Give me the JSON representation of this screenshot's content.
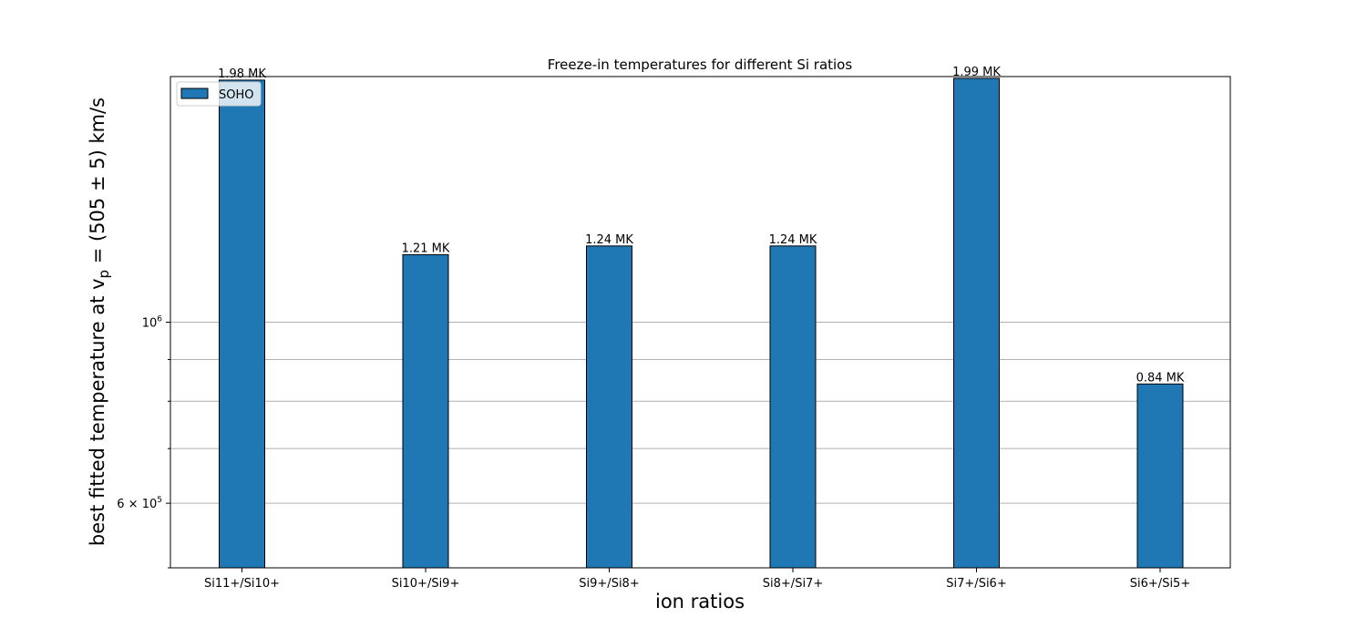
{
  "chart_data": {
    "type": "bar",
    "title": "Freeze-in temperatures for different Si ratios",
    "xlabel": "ion ratios",
    "ylabel": "best fitted temperature at v_p = (505 ± 5) km/s",
    "ylabel_parts": {
      "pre": "best fitted temperature at v",
      "sub": "p",
      "post": " = (505 ± 5) km/s"
    },
    "yscale": "log",
    "ylim": [
      500000,
      2000000
    ],
    "categories": [
      "Si11+/Si10+",
      "Si10+/Si9+",
      "Si9+/Si8+",
      "Si8+/Si7+",
      "Si7+/Si6+",
      "Si6+/Si5+"
    ],
    "series": [
      {
        "name": "SOHO",
        "color": "#1f77b4",
        "values": [
          1980000,
          1210000,
          1240000,
          1240000,
          1990000,
          840000
        ],
        "labels": [
          "1.98 MK",
          "1.21 MK",
          "1.24 MK",
          "1.24 MK",
          "1.99 MK",
          "0.84 MK"
        ]
      }
    ],
    "y_major_ticks": [
      {
        "value": 1000000,
        "base": "10",
        "exp": "6",
        "coef": ""
      },
      {
        "value": 600000,
        "base": "10",
        "exp": "5",
        "coef": "6 × "
      }
    ],
    "y_minor_ticks": [
      900000,
      800000,
      700000,
      500000
    ],
    "grid": "y-axis, major and minor",
    "legend_position": "top-left"
  }
}
